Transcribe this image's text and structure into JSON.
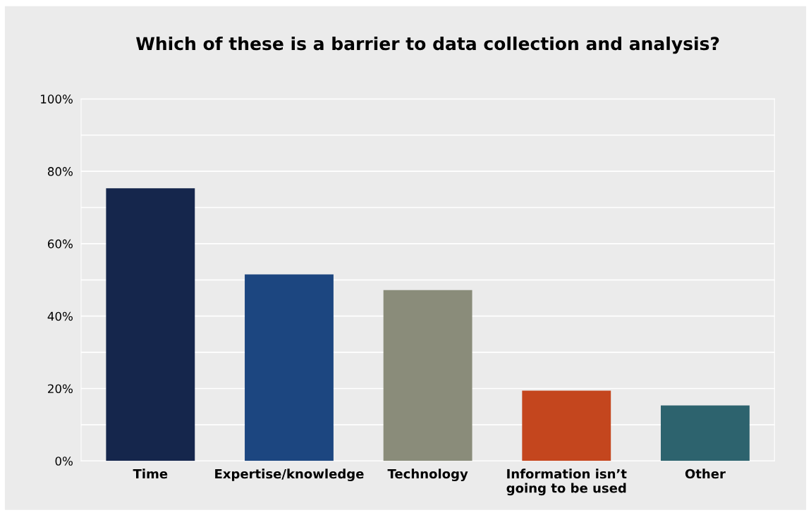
{
  "chart_data": {
    "type": "bar",
    "title": "Which of these is a barrier to data collection and analysis?",
    "categories": [
      "Time",
      "Expertise/knowledge",
      "Technology",
      "Information isn’t\ngoing to be used",
      "Other"
    ],
    "values": [
      75.3,
      51.5,
      47.2,
      19.4,
      15.3
    ],
    "colors": [
      "#15264c",
      "#1c4680",
      "#8a8c7a",
      "#c4461e",
      "#2d636e"
    ],
    "ylim": [
      0,
      100
    ],
    "yticks": [
      {
        "value": 0,
        "label": "0%"
      },
      {
        "value": 10,
        "label": null
      },
      {
        "value": 20,
        "label": "20%"
      },
      {
        "value": 30,
        "label": null
      },
      {
        "value": 40,
        "label": "40%"
      },
      {
        "value": 50,
        "label": null
      },
      {
        "value": 60,
        "label": "60%"
      },
      {
        "value": 70,
        "label": null
      },
      {
        "value": 80,
        "label": "80%"
      },
      {
        "value": 90,
        "label": null
      },
      {
        "value": 100,
        "label": "100%"
      }
    ],
    "grid": "y",
    "legend": false
  }
}
